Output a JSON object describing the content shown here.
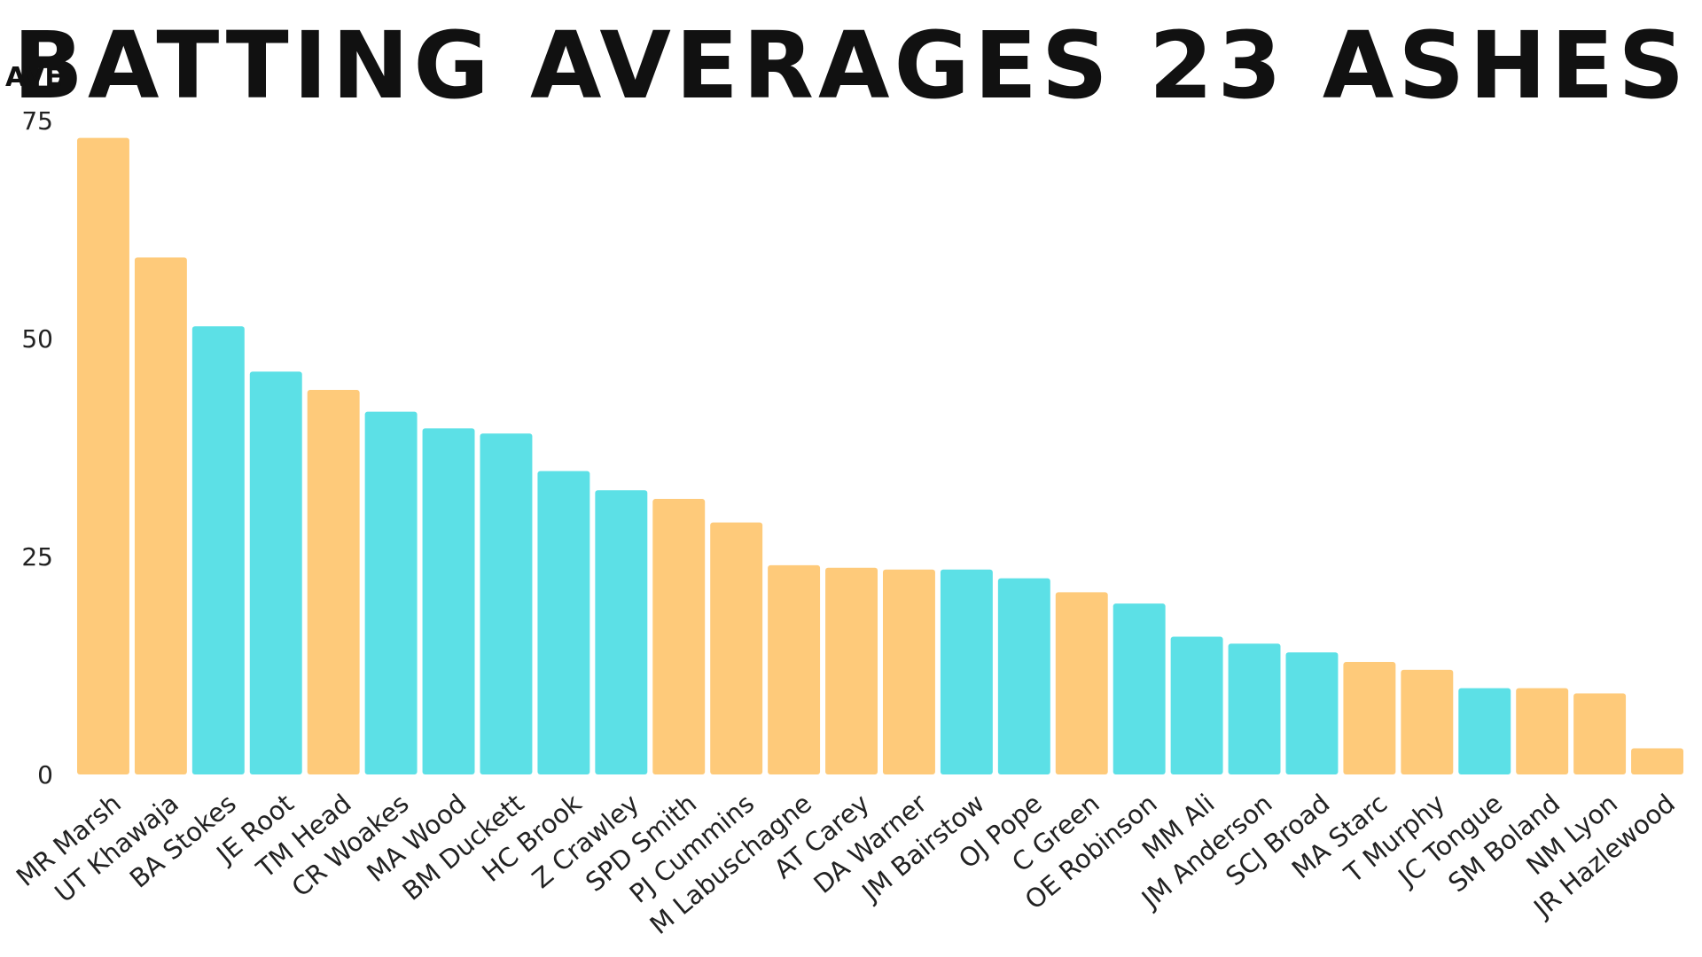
{
  "chart_data": {
    "type": "bar",
    "title": "BATTING AVERAGES 23 ASHES",
    "ylabel": "AVE",
    "xlabel": "",
    "ylim": [
      0,
      75
    ],
    "yticks": [
      0,
      25,
      50,
      75
    ],
    "grid": false,
    "colors": {
      "australia": "#FECA7A",
      "england": "#5CE0E6"
    },
    "categories": [
      "MR Marsh",
      "UT Khawaja",
      "BA Stokes",
      "JE Root",
      "TM Head",
      "CR Woakes",
      "MA Wood",
      "BM Duckett",
      "HC Brook",
      "Z Crawley",
      "SPD Smith",
      "PJ Cummins",
      "M Labuschagne",
      "AT Carey",
      "DA Warner",
      "JM Bairstow",
      "OJ Pope",
      "C Green",
      "OE Robinson",
      "MM Ali",
      "JM Anderson",
      "SCJ Broad",
      "MA Starc",
      "T Murphy",
      "JC Tongue",
      "SM Boland",
      "NM Lyon",
      "JR Hazlewood"
    ],
    "values": [
      73.0,
      59.3,
      51.4,
      46.2,
      44.1,
      41.6,
      39.7,
      39.1,
      34.8,
      32.6,
      31.6,
      28.9,
      24.0,
      23.7,
      23.5,
      23.5,
      22.5,
      20.9,
      19.6,
      15.8,
      15.0,
      14.0,
      12.9,
      12.0,
      9.9,
      9.9,
      9.3,
      3.0
    ],
    "bar_colors": [
      "#FECA7A",
      "#FECA7A",
      "#5CE0E6",
      "#5CE0E6",
      "#FECA7A",
      "#5CE0E6",
      "#5CE0E6",
      "#5CE0E6",
      "#5CE0E6",
      "#5CE0E6",
      "#FECA7A",
      "#FECA7A",
      "#FECA7A",
      "#FECA7A",
      "#FECA7A",
      "#5CE0E6",
      "#5CE0E6",
      "#FECA7A",
      "#5CE0E6",
      "#5CE0E6",
      "#5CE0E6",
      "#5CE0E6",
      "#FECA7A",
      "#FECA7A",
      "#5CE0E6",
      "#FECA7A",
      "#FECA7A",
      "#FECA7A"
    ]
  }
}
